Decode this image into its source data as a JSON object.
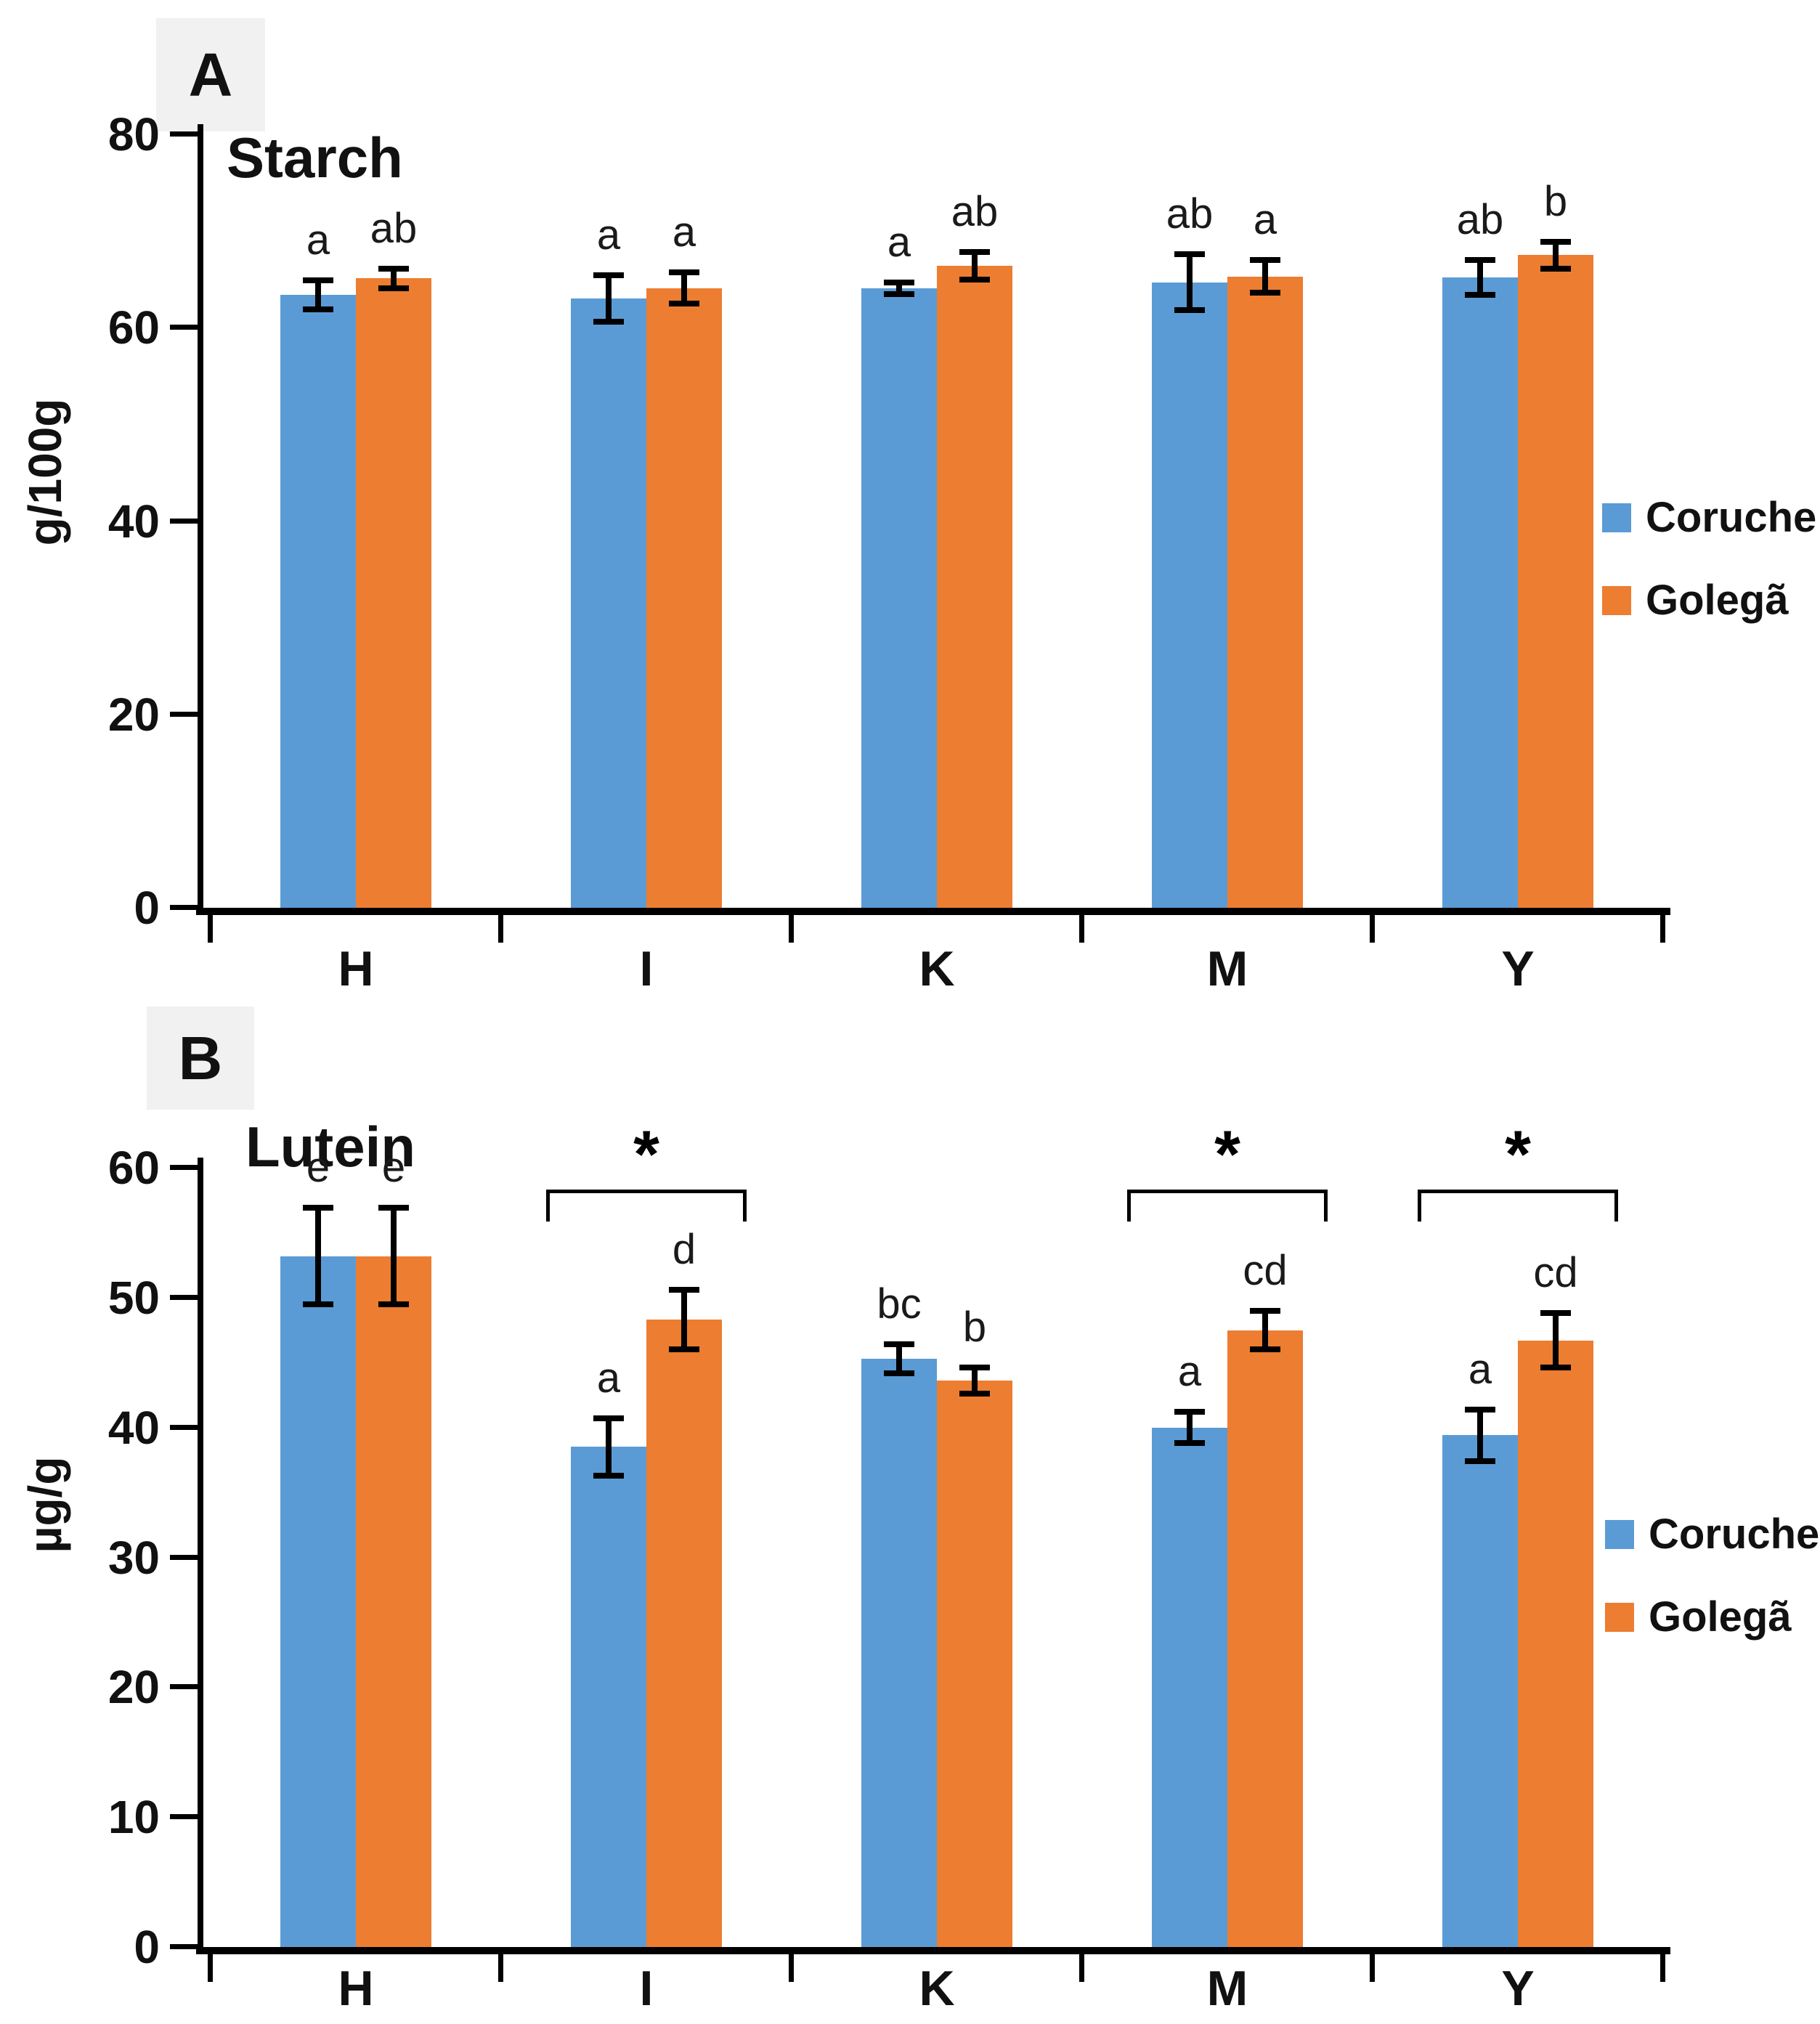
{
  "figure": {
    "panels": [
      "A",
      "B"
    ]
  },
  "legend": {
    "items": [
      {
        "label": "Coruche",
        "color": "#5B9BD5"
      },
      {
        "label": "Golegã",
        "color": "#ED7D31"
      }
    ]
  },
  "chart_data": [
    {
      "panel": "A",
      "type": "bar",
      "title": "Starch",
      "ylabel": "g/100g",
      "ylim": [
        0,
        80
      ],
      "yticks": [
        0,
        20,
        40,
        60,
        80
      ],
      "grid": false,
      "legend_position": "right",
      "categories": [
        "H",
        "I",
        "K",
        "M",
        "Y"
      ],
      "series": [
        {
          "name": "Coruche",
          "color": "#5B9BD5",
          "values": [
            63.4,
            63.0,
            64.1,
            64.7,
            65.2
          ],
          "errors": [
            1.5,
            2.4,
            0.6,
            2.9,
            1.8
          ],
          "letters": [
            "a",
            "a",
            "a",
            "ab",
            "ab"
          ]
        },
        {
          "name": "Golegã",
          "color": "#ED7D31",
          "values": [
            65.1,
            64.1,
            66.4,
            65.3,
            67.5
          ],
          "errors": [
            1.0,
            1.6,
            1.4,
            1.7,
            1.4
          ],
          "letters": [
            "ab",
            "a",
            "ab",
            "a",
            "b"
          ]
        }
      ],
      "significance": []
    },
    {
      "panel": "B",
      "type": "bar",
      "title": "Lutein",
      "ylabel": "µg/g",
      "ylim": [
        0,
        60
      ],
      "yticks": [
        0,
        10,
        20,
        30,
        40,
        50,
        60
      ],
      "grid": false,
      "legend_position": "right",
      "categories": [
        "H",
        "I",
        "K",
        "M",
        "Y"
      ],
      "series": [
        {
          "name": "Coruche",
          "color": "#5B9BD5",
          "values": [
            53.2,
            38.5,
            45.3,
            40.0,
            39.4
          ],
          "errors": [
            3.7,
            2.2,
            1.1,
            1.2,
            2.0
          ],
          "letters": [
            "e",
            "a",
            "bc",
            "a",
            "a"
          ]
        },
        {
          "name": "Golegã",
          "color": "#ED7D31",
          "values": [
            53.2,
            48.3,
            43.6,
            47.5,
            46.7
          ],
          "errors": [
            3.7,
            2.3,
            1.0,
            1.5,
            2.1
          ],
          "letters": [
            "e",
            "d",
            "b",
            "cd",
            "cd"
          ]
        }
      ],
      "significance": [
        {
          "category": "I",
          "symbol": "*"
        },
        {
          "category": "M",
          "symbol": "*"
        },
        {
          "category": "Y",
          "symbol": "*"
        }
      ]
    }
  ]
}
